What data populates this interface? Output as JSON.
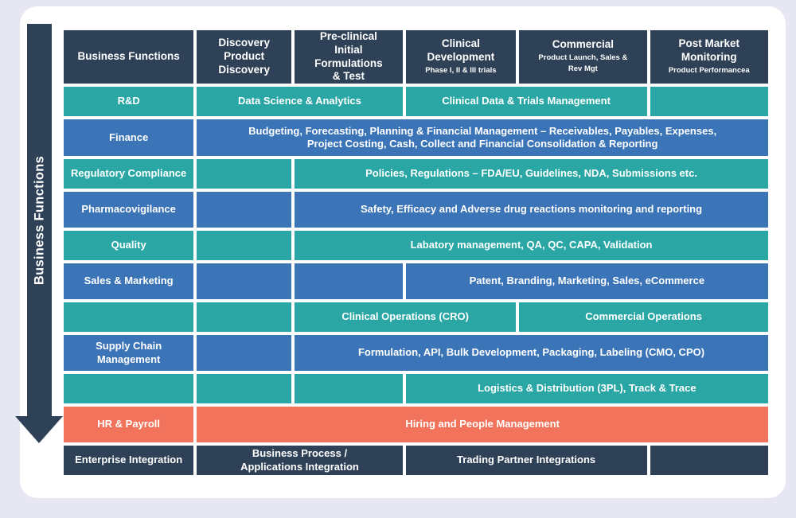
{
  "palette": {
    "navy": "#2e4156",
    "teal": "#2aa7a5",
    "blue": "#3b74b7",
    "coral": "#f1735b",
    "card": "#ffffff",
    "background": "#e6e7f3"
  },
  "arrow": {
    "label": "Business Functions"
  },
  "header": [
    {
      "title": "Business Functions",
      "sub": ""
    },
    {
      "title": "Discovery\nProduct\nDiscovery",
      "sub": ""
    },
    {
      "title": "Pre-clinical\nInitial Formulations\n& Test",
      "sub": ""
    },
    {
      "title": "Clinical\nDevelopment",
      "sub": "Phase I, II & III trials"
    },
    {
      "title": "Commercial",
      "sub": "Product Launch, Sales &\nRev Mgt"
    },
    {
      "title": "Post Market\nMonitoring",
      "sub": "Product Performancea"
    }
  ],
  "rows": [
    {
      "name": "rnd-row",
      "cells": [
        {
          "text": "R&D",
          "color": "teal",
          "start": 1,
          "span": 1
        },
        {
          "text": "Data Science & Analytics",
          "color": "teal",
          "start": 2,
          "span": 2
        },
        {
          "text": "Clinical Data & Trials Management",
          "color": "teal",
          "start": 4,
          "span": 2
        },
        {
          "text": "",
          "color": "teal",
          "start": 6,
          "span": 1
        }
      ]
    },
    {
      "name": "finance-row",
      "cells": [
        {
          "text": "Finance",
          "color": "blue",
          "start": 1,
          "span": 1
        },
        {
          "text": "Budgeting, Forecasting, Planning & Financial Management – Receivables, Payables, Expenses,\nProject Costing, Cash, Collect and Financial Consolidation & Reporting",
          "color": "blue",
          "start": 2,
          "span": 5
        }
      ]
    },
    {
      "name": "regulatory-compliance-row",
      "cells": [
        {
          "text": "Regulatory Compliance",
          "color": "teal",
          "start": 1,
          "span": 1
        },
        {
          "text": "",
          "color": "teal",
          "start": 2,
          "span": 1
        },
        {
          "text": "Policies, Regulations – FDA/EU, Guidelines, NDA, Submissions etc.",
          "color": "teal",
          "start": 3,
          "span": 4
        }
      ]
    },
    {
      "name": "pharmacovigilance-row",
      "cells": [
        {
          "text": "Pharmacovigilance",
          "color": "blue",
          "start": 1,
          "span": 1
        },
        {
          "text": "",
          "color": "blue",
          "start": 2,
          "span": 1
        },
        {
          "text": "Safety, Efficacy and Adverse drug reactions monitoring and reporting",
          "color": "blue",
          "start": 3,
          "span": 4
        }
      ]
    },
    {
      "name": "quality-row",
      "cells": [
        {
          "text": "Quality",
          "color": "teal",
          "start": 1,
          "span": 1
        },
        {
          "text": "",
          "color": "teal",
          "start": 2,
          "span": 1
        },
        {
          "text": "Labatory management, QA, QC, CAPA, Validation",
          "color": "teal",
          "start": 3,
          "span": 4
        }
      ]
    },
    {
      "name": "sales-marketing-row",
      "cells": [
        {
          "text": "Sales & Marketing",
          "color": "blue",
          "start": 1,
          "span": 1
        },
        {
          "text": "",
          "color": "blue",
          "start": 2,
          "span": 1
        },
        {
          "text": "",
          "color": "blue",
          "start": 3,
          "span": 1
        },
        {
          "text": "Patent, Branding, Marketing, Sales, eCommerce",
          "color": "blue",
          "start": 4,
          "span": 3
        }
      ]
    },
    {
      "name": "operations-row",
      "cells": [
        {
          "text": "",
          "color": "teal",
          "start": 1,
          "span": 1
        },
        {
          "text": "",
          "color": "teal",
          "start": 2,
          "span": 1
        },
        {
          "text": "Clinical Operations (CRO)",
          "color": "teal",
          "start": 3,
          "span": 2
        },
        {
          "text": "Commercial Operations",
          "color": "teal",
          "start": 5,
          "span": 2
        }
      ]
    },
    {
      "name": "supply-chain-row",
      "cells": [
        {
          "text": "Supply Chain\nManagement",
          "color": "blue",
          "start": 1,
          "span": 1
        },
        {
          "text": "",
          "color": "blue",
          "start": 2,
          "span": 1
        },
        {
          "text": "Formulation, API, Bulk Development, Packaging, Labeling (CMO, CPO)",
          "color": "blue",
          "start": 3,
          "span": 4
        }
      ]
    },
    {
      "name": "logistics-row",
      "cells": [
        {
          "text": "",
          "color": "teal",
          "start": 1,
          "span": 1
        },
        {
          "text": "",
          "color": "teal",
          "start": 2,
          "span": 1
        },
        {
          "text": "",
          "color": "teal",
          "start": 3,
          "span": 1
        },
        {
          "text": "Logistics & Distribution (3PL), Track & Trace",
          "color": "teal",
          "start": 4,
          "span": 3
        }
      ]
    },
    {
      "name": "hr-payroll-row",
      "cells": [
        {
          "text": "HR & Payroll",
          "color": "coral",
          "start": 1,
          "span": 1
        },
        {
          "text": "Hiring and People Management",
          "color": "coral",
          "start": 2,
          "span": 5
        }
      ]
    },
    {
      "name": "enterprise-integration-row",
      "cells": [
        {
          "text": "Enterprise Integration",
          "color": "navy",
          "start": 1,
          "span": 1
        },
        {
          "text": "Business Process /\nApplications Integration",
          "color": "navy",
          "start": 2,
          "span": 2
        },
        {
          "text": "Trading Partner Integrations",
          "color": "navy",
          "start": 4,
          "span": 2
        },
        {
          "text": "",
          "color": "navy",
          "start": 6,
          "span": 1
        }
      ]
    }
  ]
}
